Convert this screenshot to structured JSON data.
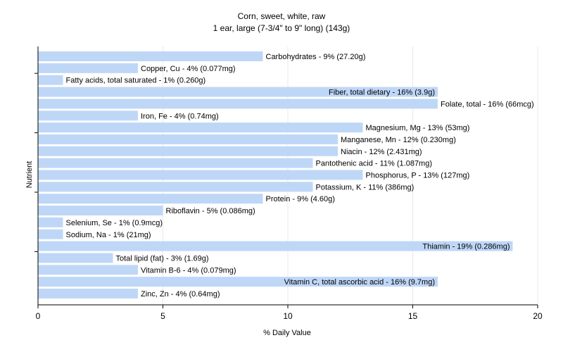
{
  "chart_data": {
    "type": "bar",
    "orientation": "horizontal",
    "title": "Corn, sweet, white, raw",
    "subtitle": "1 ear, large (7-3/4\" to 9\" long) (143g)",
    "xlabel": "% Daily Value",
    "ylabel": "Nutrient",
    "xlim": [
      0,
      20
    ],
    "xticks": [
      "0",
      "5",
      "10",
      "15",
      "20"
    ],
    "grid": "vertical",
    "bar_color": "#bfd7f7",
    "grid_color": "#e8e8e8",
    "categories": [
      "Carbohydrates",
      "Copper, Cu",
      "Fatty acids, total saturated",
      "Fiber, total dietary",
      "Folate, total",
      "Iron, Fe",
      "Magnesium, Mg",
      "Manganese, Mn",
      "Niacin",
      "Pantothenic acid",
      "Phosphorus, P",
      "Potassium, K",
      "Protein",
      "Riboflavin",
      "Selenium, Se",
      "Sodium, Na",
      "Thiamin",
      "Total lipid (fat)",
      "Vitamin B-6",
      "Vitamin C, total ascorbic acid",
      "Zinc, Zn"
    ],
    "values": [
      9,
      4,
      1,
      16,
      16,
      4,
      13,
      12,
      12,
      11,
      13,
      11,
      9,
      5,
      1,
      1,
      19,
      3,
      4,
      16,
      4
    ],
    "labels": [
      "Carbohydrates - 9% (27.20g)",
      "Copper, Cu - 4% (0.077mg)",
      "Fatty acids, total saturated - 1% (0.260g)",
      "Fiber, total dietary - 16% (3.9g)",
      "Folate, total - 16% (66mcg)",
      "Iron, Fe - 4% (0.74mg)",
      "Magnesium, Mg - 13% (53mg)",
      "Manganese, Mn - 12% (0.230mg)",
      "Niacin - 12% (2.431mg)",
      "Pantothenic acid - 11% (1.087mg)",
      "Phosphorus, P - 13% (127mg)",
      "Potassium, K - 11% (386mg)",
      "Protein - 9% (4.60g)",
      "Riboflavin - 5% (0.086mg)",
      "Selenium, Se - 1% (0.9mcg)",
      "Sodium, Na - 1% (21mg)",
      "Thiamin - 19% (0.286mg)",
      "Total lipid (fat) - 3% (1.69g)",
      "Vitamin B-6 - 4% (0.079mg)",
      "Vitamin C, total ascorbic acid - 16% (9.7mg)",
      "Zinc, Zn - 4% (0.64mg)"
    ]
  }
}
